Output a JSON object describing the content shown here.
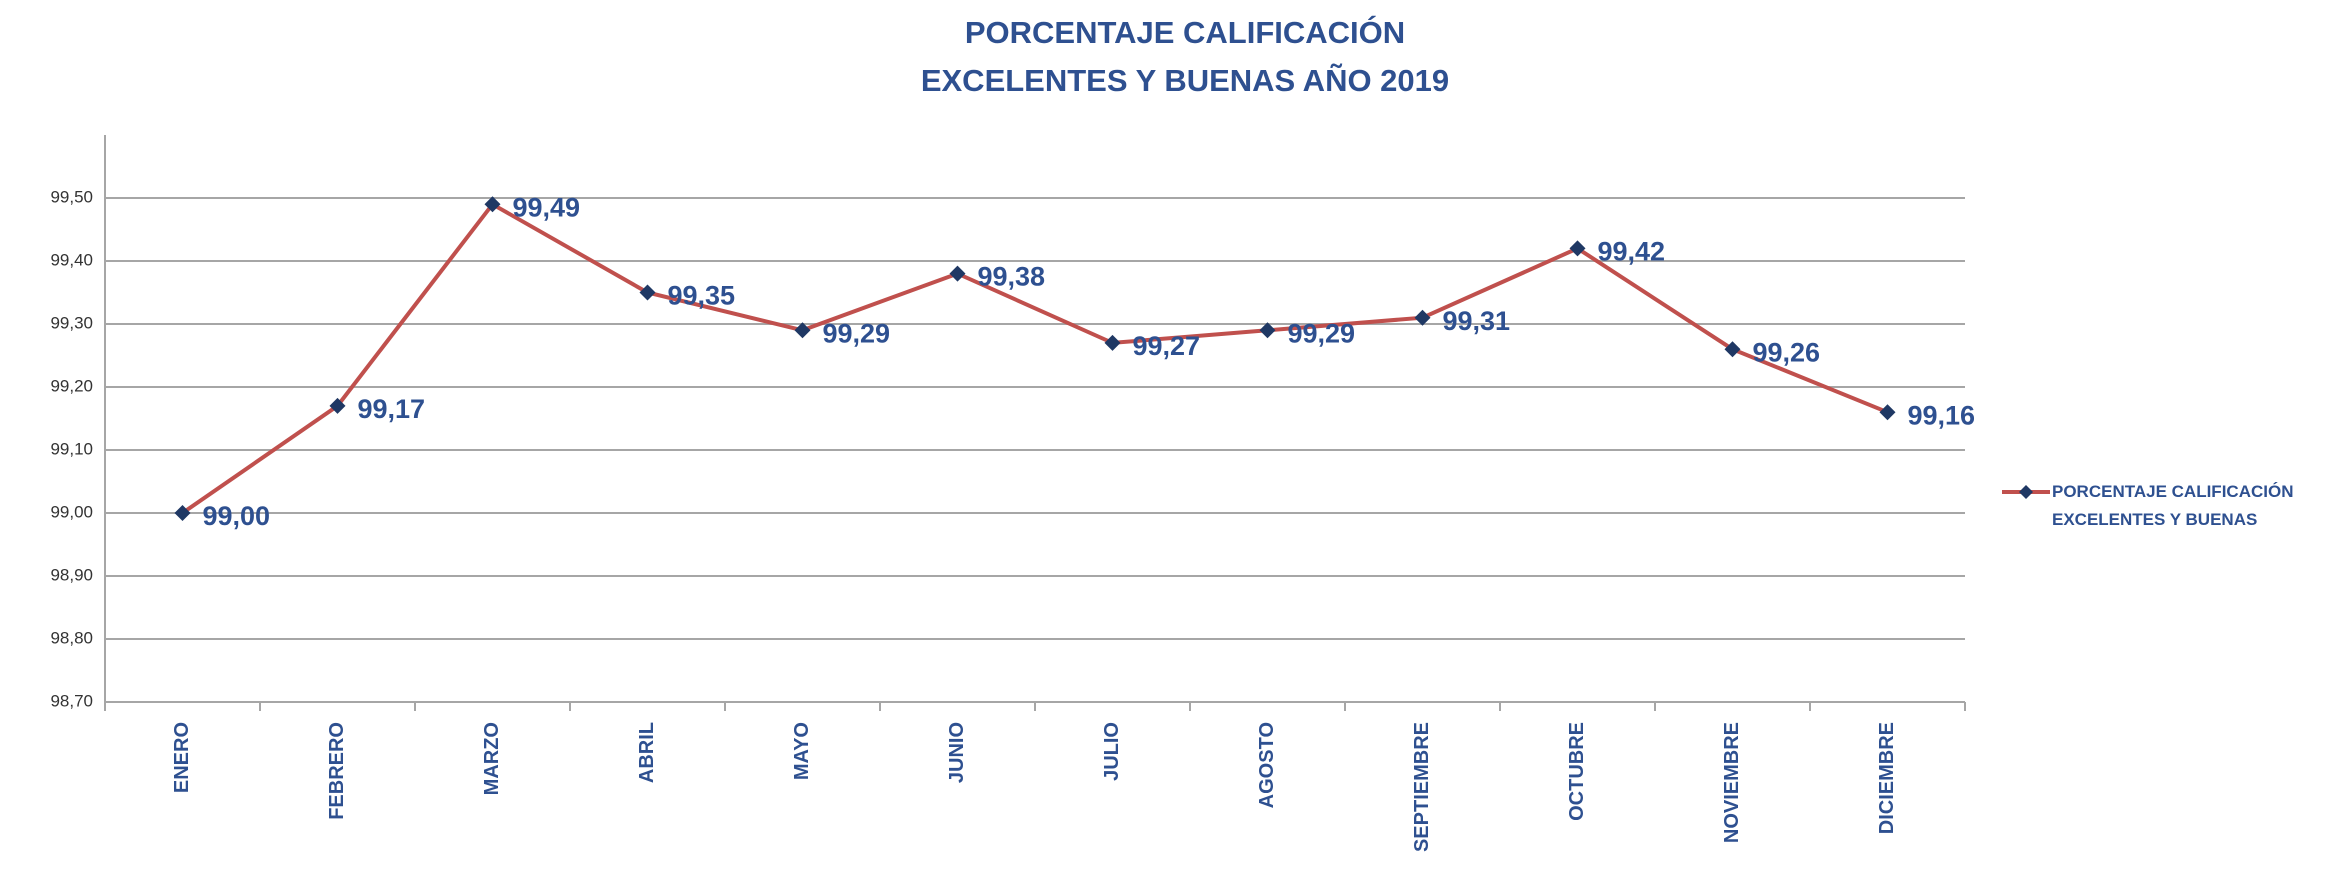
{
  "chart_data": {
    "type": "line",
    "title": "PORCENTAJE  CALIFICACIÓN",
    "subtitle": "EXCELENTES Y BUENAS AÑO 2019",
    "categories": [
      "ENERO",
      "FEBRERO",
      "MARZO",
      "ABRIL",
      "MAYO",
      "JUNIO",
      "JULIO",
      "AGOSTO",
      "SEPTIEMBRE",
      "OCTUBRE",
      "NOVIEMBRE",
      "DICIEMBRE"
    ],
    "series": [
      {
        "name": "PORCENTAJE CALIFICACIÓN EXCELENTES Y BUENAS",
        "color": "#c0504d",
        "marker_color": "#1f3864",
        "values": [
          99.0,
          99.17,
          99.49,
          99.35,
          99.29,
          99.38,
          99.27,
          99.29,
          99.31,
          99.42,
          99.26,
          99.16
        ],
        "value_labels": [
          "99,00",
          "99,17",
          "99,49",
          "99,35",
          "99,29",
          "99,38",
          "99,27",
          "99,29",
          "99,31",
          "99,42",
          "99,26",
          "99,16"
        ]
      }
    ],
    "ylim": [
      98.7,
      99.6
    ],
    "yticks": [
      {
        "value": 98.7,
        "label": "98,70"
      },
      {
        "value": 98.8,
        "label": "98,80"
      },
      {
        "value": 98.9,
        "label": "98,90"
      },
      {
        "value": 99.0,
        "label": "99,00"
      },
      {
        "value": 99.1,
        "label": "99,10"
      },
      {
        "value": 99.2,
        "label": "99,20"
      },
      {
        "value": 99.3,
        "label": "99,30"
      },
      {
        "value": 99.4,
        "label": "99,40"
      },
      {
        "value": 99.5,
        "label": "99,50"
      }
    ],
    "grid": true,
    "legend": "right"
  }
}
